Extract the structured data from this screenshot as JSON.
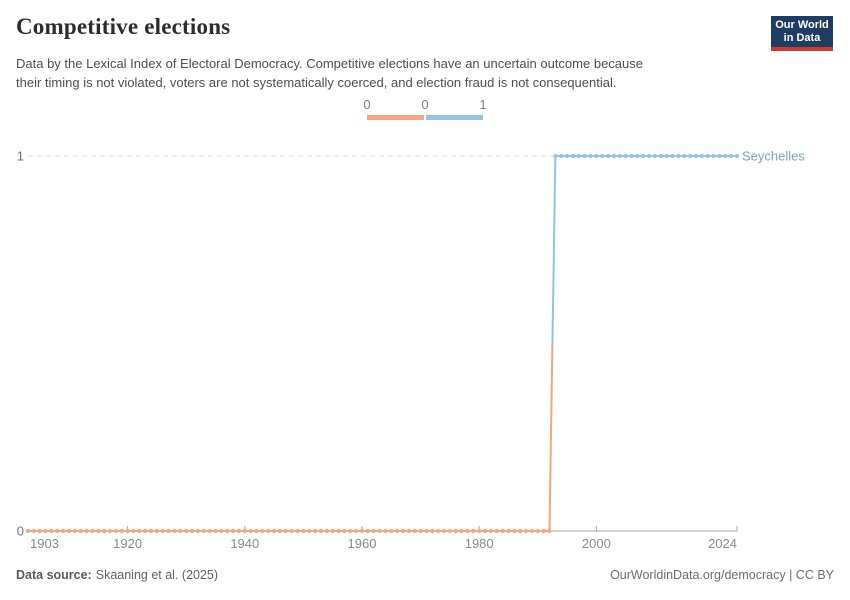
{
  "header": {
    "title": "Competitive elections",
    "subtitle_lines": [
      "Data by the Lexical Index of Electoral Democracy. Competitive elections have an uncertain outcome because",
      "their timing is not violated, voters are not systematically coerced, and election fraud is not consequential."
    ]
  },
  "logo": {
    "line1": "Our World",
    "line2": "in Data",
    "bg_color": "#1d3d63",
    "accent_color": "#ce3a2e"
  },
  "legend": {
    "ticks": [
      "0",
      "0",
      "1"
    ],
    "colors": [
      "#f4a582",
      "#92c5de"
    ]
  },
  "chart_data": {
    "type": "line",
    "title": "Competitive elections",
    "series": [
      {
        "name": "Seychelles",
        "label_color": "#79a4c4",
        "color_by_value": {
          "0": "#f4a582",
          "1": "#92c5de"
        },
        "segments": [
          {
            "start_year": 1903,
            "end_year": 1992,
            "value": 0
          },
          {
            "start_year": 1993,
            "end_year": 2024,
            "value": 1
          }
        ]
      }
    ],
    "x_ticks": [
      1903,
      1920,
      1940,
      1960,
      1980,
      2000,
      2024
    ],
    "y_ticks": [
      0,
      1
    ],
    "xlim": [
      1903,
      2024
    ],
    "ylim": [
      0,
      1
    ],
    "grid": "dashed horizontal gridline at y=1, solid baseline at y=0",
    "legend_position": "top-center",
    "axis_colors": {
      "gridline": "#dcdcdc",
      "axis_line": "#a9a9a9",
      "x_label": "#8a8a8a",
      "y_label": "#757575"
    }
  },
  "footer": {
    "source_label": "Data source:",
    "source_text": "Skaaning et al. (2025)",
    "credit": "OurWorldinData.org/democracy | CC BY"
  }
}
